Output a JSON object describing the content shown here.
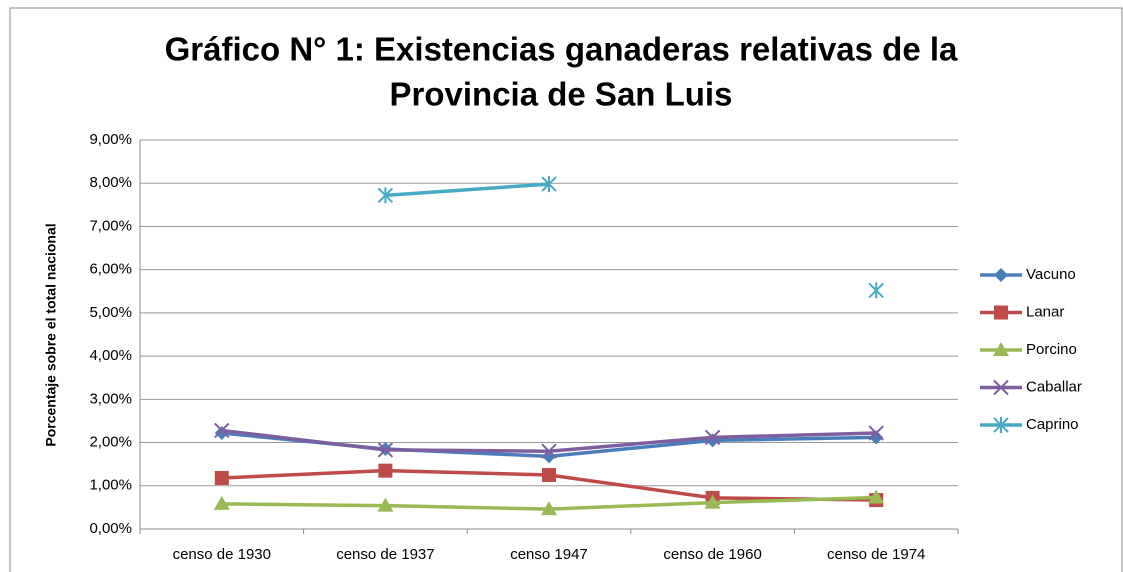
{
  "chart_data": {
    "type": "line",
    "title": "Gráfico N° 1: Existencias  ganaderas relativas de la Provincia de San Luis",
    "ylabel": "Porcentaje sobre el total nacional",
    "categories": [
      "censo de 1930",
      "censo de 1937",
      "censo 1947",
      "censo de 1960",
      "censo de 1974"
    ],
    "series": [
      {
        "name": "Vacuno",
        "color": "#4a7ebb",
        "marker": "diamond",
        "values": [
          2.22,
          1.85,
          1.68,
          2.05,
          2.12
        ]
      },
      {
        "name": "Lanar",
        "color": "#be4b48",
        "marker": "square",
        "values": [
          1.18,
          1.35,
          1.25,
          0.72,
          0.67
        ]
      },
      {
        "name": "Porcino",
        "color": "#98b954",
        "marker": "triangle",
        "values": [
          0.58,
          0.54,
          0.46,
          0.61,
          0.73
        ]
      },
      {
        "name": "Caballar",
        "color": "#7d5fa0",
        "marker": "cross",
        "values": [
          2.28,
          1.83,
          1.8,
          2.12,
          2.22
        ]
      },
      {
        "name": "Caprino",
        "color": "#46aac5",
        "marker": "asterisk",
        "values": [
          null,
          7.72,
          7.98,
          null,
          5.52
        ]
      }
    ],
    "ylim": [
      0,
      9
    ],
    "yticks": [
      {
        "value": 0,
        "label": "0,00%"
      },
      {
        "value": 1,
        "label": "1,00%"
      },
      {
        "value": 2,
        "label": "2,00%"
      },
      {
        "value": 3,
        "label": "3,00%"
      },
      {
        "value": 4,
        "label": "4,00%"
      },
      {
        "value": 5,
        "label": "5,00%"
      },
      {
        "value": 6,
        "label": "6,00%"
      },
      {
        "value": 7,
        "label": "7,00%"
      },
      {
        "value": 8,
        "label": "8,00%"
      },
      {
        "value": 9,
        "label": "9,00%"
      }
    ],
    "grid": true,
    "legend": "right"
  }
}
